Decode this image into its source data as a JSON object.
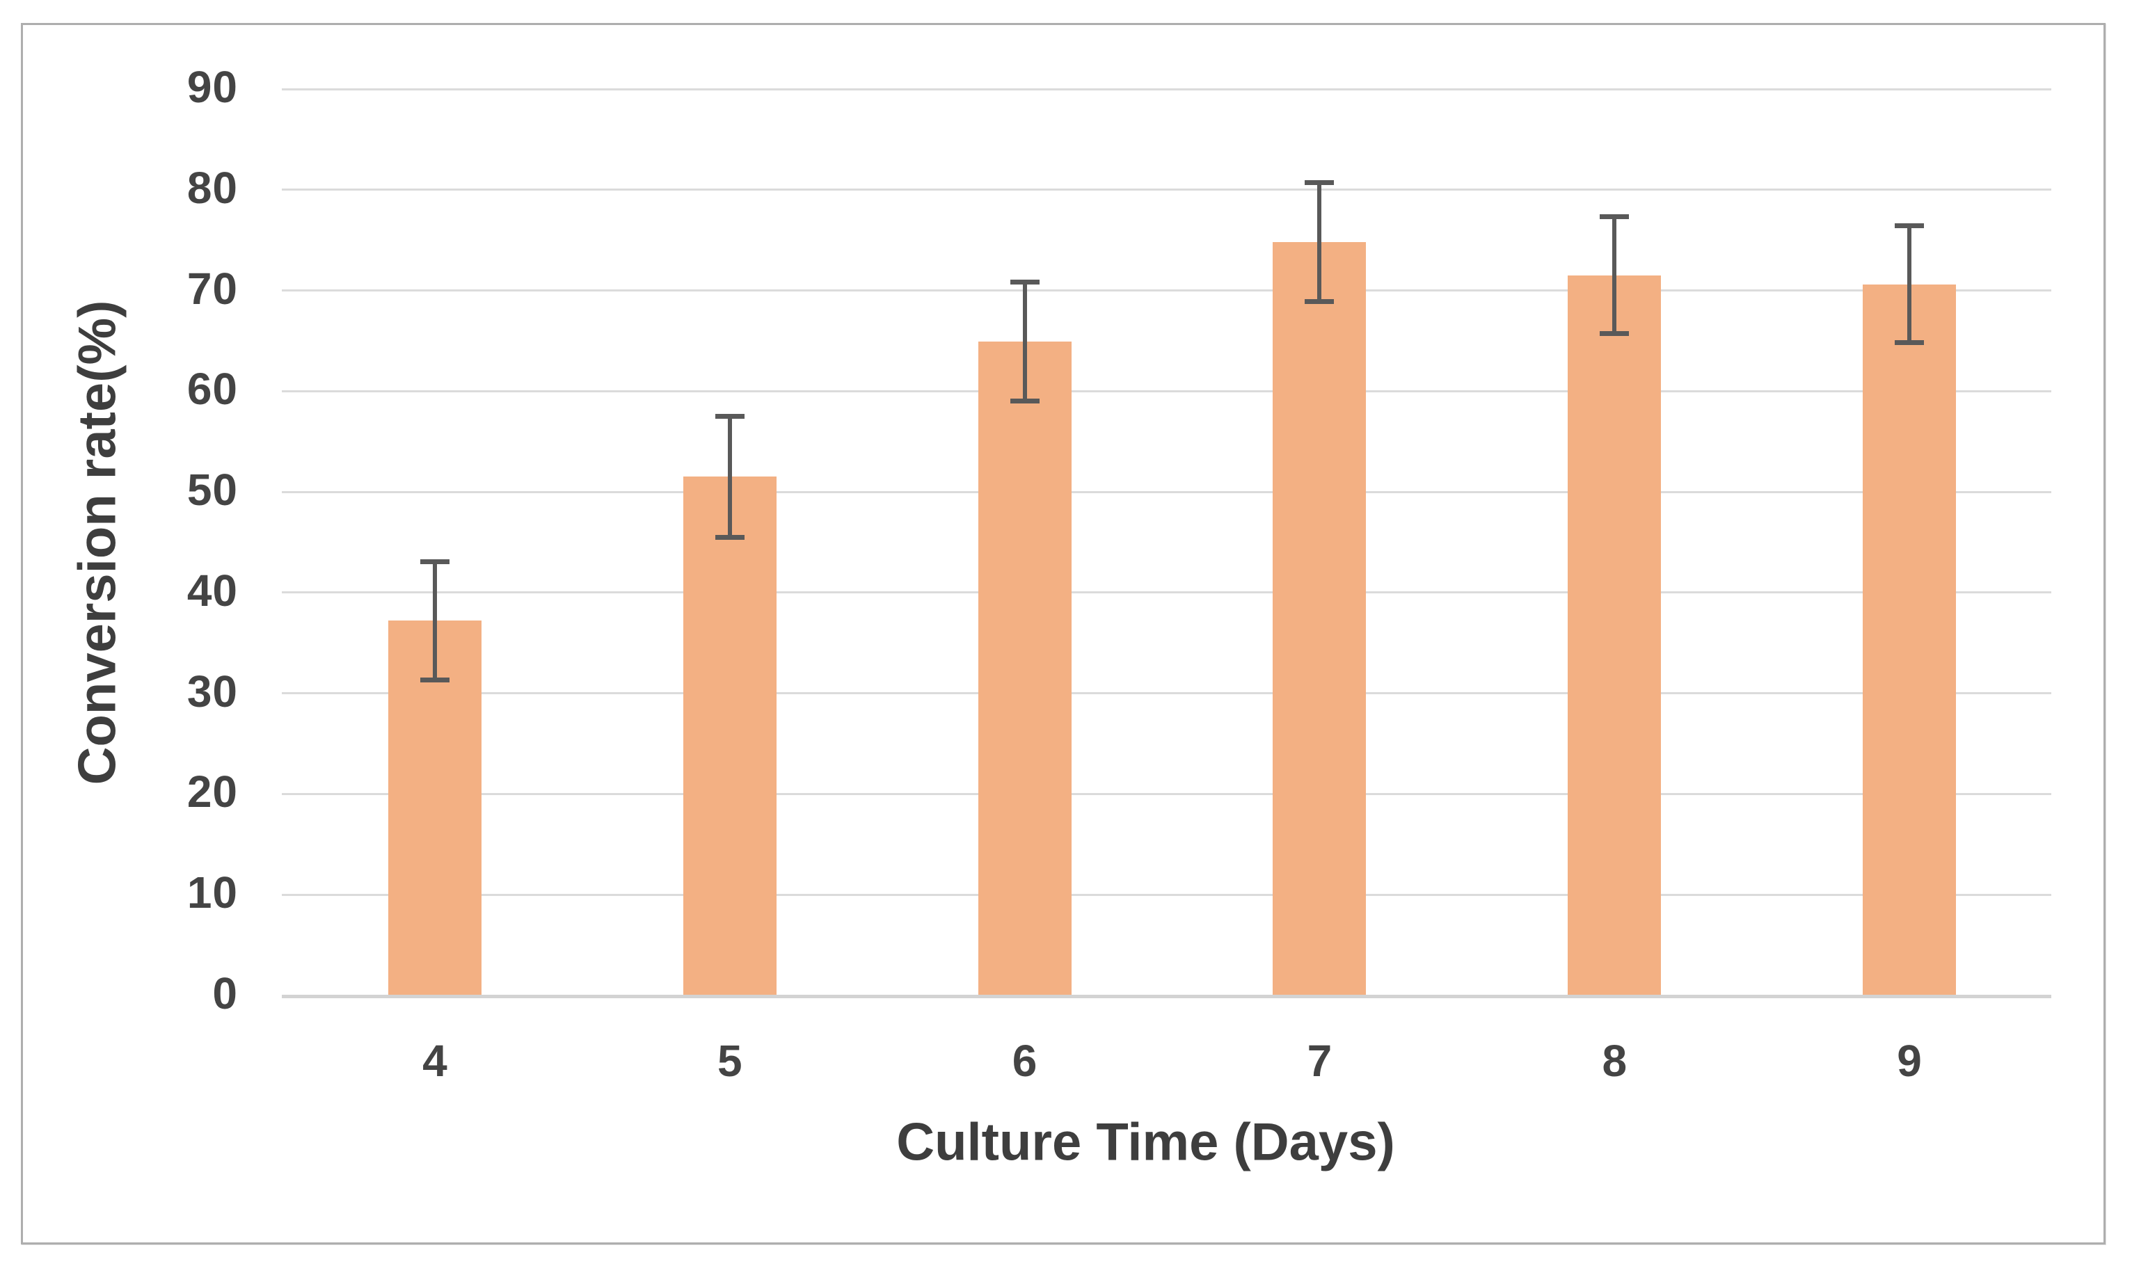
{
  "chart_data": {
    "type": "bar",
    "title": "",
    "xlabel": "Culture Time (Days)",
    "ylabel": "Conversion rate(%)",
    "categories": [
      "4",
      "5",
      "6",
      "7",
      "8",
      "9"
    ],
    "series": [
      {
        "name": "Conversion rate",
        "values": [
          37.2,
          51.5,
          64.9,
          74.8,
          71.5,
          70.6
        ],
        "errors": [
          5.9,
          6.0,
          5.9,
          5.9,
          5.8,
          5.8
        ]
      }
    ],
    "ylim": [
      0,
      90
    ],
    "yticks": [
      "0",
      "10",
      "20",
      "30",
      "40",
      "50",
      "60",
      "70",
      "80",
      "90"
    ],
    "ytick_values": [
      0,
      10,
      20,
      30,
      40,
      50,
      60,
      70,
      80,
      90
    ],
    "grid": "horizontal-only",
    "legend": "none",
    "error_bars": "symmetric, cap-ended",
    "colors": {
      "bar_fill": "#F3B083",
      "error_bar": "#595959",
      "gridline": "#DBDBDB",
      "axis_line": "#D3D3D3",
      "tick_label": "#444444",
      "axis_title": "#3E3E3E",
      "figure_border": "#AEAEAE",
      "background": "#FFFFFF"
    }
  }
}
